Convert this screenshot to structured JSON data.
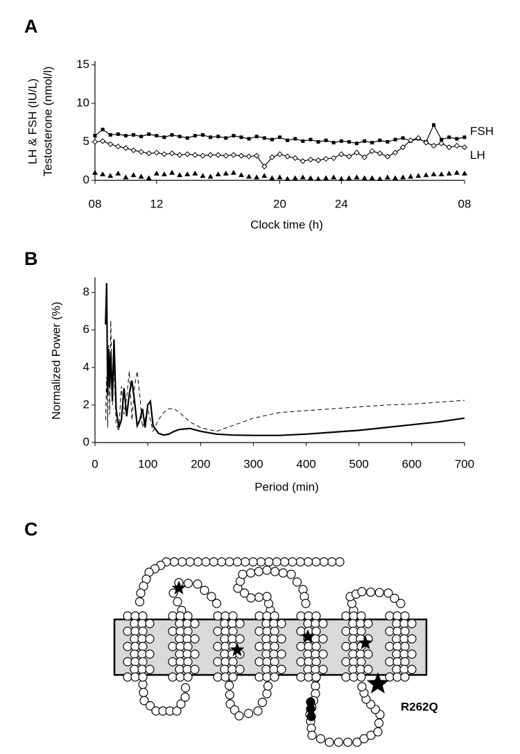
{
  "chart_data": [
    {
      "type": "line",
      "panel": "A",
      "ylabel": [
        "LH & FSH (IU/L)",
        "Testosterone (nmol/l)"
      ],
      "xlabel": "Clock time (h)",
      "x": [
        8,
        8.5,
        9,
        9.5,
        10,
        10.5,
        11,
        11.5,
        12,
        12.5,
        13,
        13.5,
        14,
        14.5,
        15,
        15.5,
        16,
        16.5,
        17,
        17.5,
        18,
        18.5,
        19,
        19.5,
        20,
        20.5,
        21,
        21.5,
        22,
        22.5,
        23,
        23.5,
        24,
        24.5,
        25,
        25.5,
        26,
        26.5,
        27,
        27.5,
        28,
        28.5,
        29,
        29.5,
        30,
        30.5,
        31,
        31.5,
        32
      ],
      "series": [
        {
          "name": "FSH",
          "color": "#000000",
          "marker": "square",
          "dash": false,
          "values": [
            5.8,
            6.6,
            5.9,
            6.0,
            5.8,
            5.9,
            5.7,
            6.0,
            5.8,
            5.6,
            5.9,
            5.7,
            5.5,
            5.8,
            5.9,
            5.6,
            5.7,
            5.5,
            5.8,
            5.6,
            5.4,
            5.7,
            5.5,
            5.3,
            5.6,
            5.2,
            5.4,
            5.1,
            5.3,
            5.0,
            5.2,
            4.9,
            5.1,
            5.0,
            4.8,
            5.1,
            4.9,
            5.2,
            5.0,
            5.3,
            5.5,
            5.1,
            5.4,
            5.0,
            7.2,
            5.3,
            5.6,
            5.4,
            5.6
          ]
        },
        {
          "name": "LH",
          "color": "#000000",
          "marker": "diamond",
          "dash": false,
          "values": [
            5.0,
            5.1,
            4.7,
            4.4,
            4.2,
            3.9,
            3.7,
            3.5,
            3.6,
            3.4,
            3.5,
            3.3,
            3.4,
            3.3,
            3.2,
            3.3,
            3.3,
            3.2,
            3.3,
            3.2,
            3.1,
            3.2,
            1.8,
            3.0,
            3.4,
            3.1,
            2.9,
            2.5,
            2.7,
            2.6,
            2.8,
            2.9,
            3.4,
            3.1,
            3.6,
            3.0,
            3.8,
            3.5,
            3.1,
            3.6,
            4.3,
            5.2,
            5.5,
            4.9,
            4.5,
            4.8,
            4.3,
            4.5,
            4.3
          ]
        },
        {
          "color": "#000000",
          "marker": "triangle",
          "line": false,
          "values": [
            1.0,
            0.8,
            0.6,
            0.9,
            0.4,
            0.7,
            0.5,
            0.3,
            0.9,
            0.8,
            1.0,
            0.7,
            0.8,
            0.9,
            0.6,
            0.5,
            0.8,
            0.9,
            1.0,
            0.7,
            0.5,
            0.4,
            0.6,
            0.3,
            0.4,
            0.2,
            0.3,
            0.4,
            0.3,
            0.2,
            0.3,
            0.4,
            0.2,
            0.3,
            0.4,
            0.3,
            0.3,
            0.2,
            0.4,
            0.3,
            0.4,
            0.5,
            0.6,
            0.7,
            0.8,
            0.8,
            0.9,
            1.0,
            0.9
          ]
        }
      ],
      "xlim": [
        8,
        32
      ],
      "xticks": [
        {
          "value": 8,
          "label": "08"
        },
        12,
        20,
        24,
        {
          "value": 32,
          "label": "08"
        }
      ],
      "ylim": [
        0,
        15.5
      ],
      "yticks": [
        0,
        5,
        10,
        15
      ]
    },
    {
      "type": "line",
      "panel": "B",
      "ylabel": [
        "Normalized Power (%)"
      ],
      "xlabel": "Period (min)",
      "x": [
        20,
        22,
        24,
        26,
        28,
        30,
        33,
        36,
        40,
        45,
        50,
        55,
        60,
        65,
        70,
        75,
        80,
        85,
        90,
        95,
        100,
        105,
        110,
        120,
        130,
        140,
        150,
        160,
        180,
        200,
        230,
        260,
        300,
        350,
        400,
        450,
        500,
        550,
        600,
        650,
        700
      ],
      "series": [
        {
          "color": "#000000",
          "dash": false,
          "width": 2.2,
          "values": [
            6.3,
            8.5,
            2.5,
            5.0,
            3.0,
            4.8,
            2.2,
            5.5,
            1.8,
            0.8,
            1.2,
            2.9,
            1.4,
            2.6,
            3.3,
            2.2,
            0.9,
            1.2,
            1.8,
            0.8,
            2.0,
            2.2,
            0.9,
            0.5,
            0.4,
            0.45,
            0.6,
            0.7,
            0.75,
            0.6,
            0.45,
            0.4,
            0.38,
            0.38,
            0.45,
            0.55,
            0.65,
            0.8,
            0.95,
            1.1,
            1.3
          ]
        },
        {
          "color": "#000000",
          "dash": true,
          "width": 1,
          "values": [
            1.2,
            3.5,
            0.8,
            5.2,
            1.5,
            6.5,
            2.0,
            4.0,
            1.0,
            0.6,
            3.0,
            1.5,
            2.4,
            3.8,
            1.2,
            3.0,
            3.8,
            2.5,
            0.8,
            1.2,
            1.8,
            1.2,
            0.6,
            1.2,
            1.6,
            1.8,
            1.8,
            1.6,
            1.1,
            0.8,
            0.6,
            0.9,
            1.3,
            1.6,
            1.7,
            1.8,
            1.9,
            2.0,
            2.05,
            2.15,
            2.25
          ]
        }
      ],
      "xlim": [
        0,
        700
      ],
      "xticks": [
        0,
        100,
        200,
        300,
        400,
        500,
        600,
        700
      ],
      "ylim": [
        0,
        8.8
      ],
      "yticks": [
        0,
        2,
        4,
        6,
        8
      ]
    }
  ],
  "diagram": {
    "panel": "C",
    "label": "R262Q"
  }
}
